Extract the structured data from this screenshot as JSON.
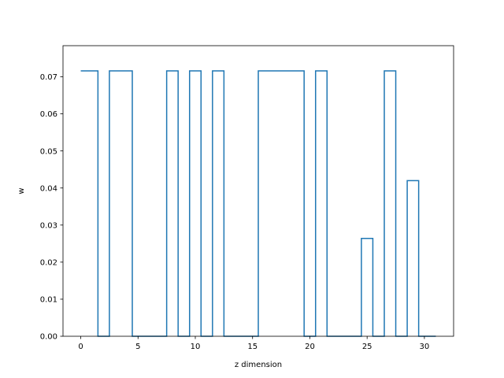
{
  "chart_data": {
    "type": "step",
    "xlabel": "z dimension",
    "ylabel": "w",
    "xlim": [
      -1.55,
      32.55
    ],
    "ylim": [
      0.0,
      0.0784
    ],
    "x_ticks": [
      0,
      5,
      10,
      15,
      20,
      25,
      30
    ],
    "x_tick_labels": [
      "0",
      "5",
      "10",
      "15",
      "20",
      "25",
      "30"
    ],
    "y_ticks": [
      0.0,
      0.01,
      0.02,
      0.03,
      0.04,
      0.05,
      0.06,
      0.07
    ],
    "y_tick_labels": [
      "0.00",
      "0.01",
      "0.02",
      "0.03",
      "0.04",
      "0.05",
      "0.06",
      "0.07"
    ],
    "grid": false,
    "series": [
      {
        "color": "#1f77b4",
        "x": [
          0,
          1,
          2,
          3,
          4,
          5,
          6,
          7,
          8,
          9,
          10,
          11,
          12,
          13,
          14,
          15,
          16,
          17,
          18,
          19,
          20,
          21,
          22,
          23,
          24,
          25,
          26,
          27,
          28,
          29,
          30,
          31
        ],
        "values": [
          0.0716,
          0.0716,
          0,
          0.0716,
          0.0716,
          0,
          0,
          0,
          0.0716,
          0,
          0.0716,
          0,
          0.0716,
          0,
          0,
          0,
          0.0716,
          0.0716,
          0.0716,
          0.0716,
          0,
          0.0716,
          0,
          0,
          0,
          0.0264,
          0,
          0.0716,
          0,
          0.042,
          0,
          0
        ]
      }
    ]
  }
}
